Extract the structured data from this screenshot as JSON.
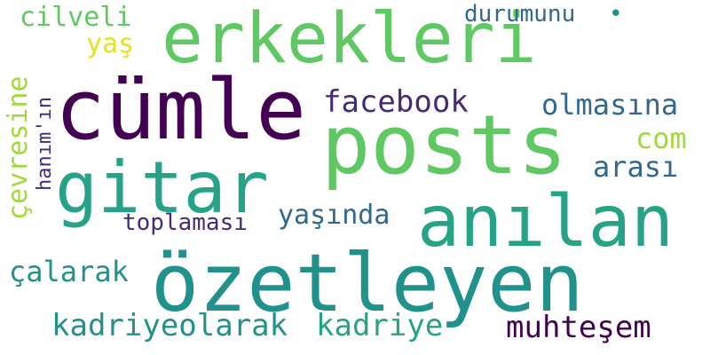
{
  "words": {
    "erkekleri": "erkekleri",
    "cumle": "cümle",
    "posts": "posts",
    "gitar": "gitar",
    "anilan": "anılan",
    "ozetleyen": "özetleyen",
    "cilveli": "cilveli",
    "yas": "yaş",
    "durumunu": "durumunu",
    "facebook": "facebook",
    "olmasina": "olmasına",
    "com": "com",
    "arasi": "arası",
    "cevresine": "çevresine",
    "hanimin": "hanım'ın",
    "toplamasi": "toplaması",
    "yasinda": "yaşında",
    "calarak": "çalarak",
    "kadriyeolarak": "kadriyeolarak",
    "kadriye": "kadriye",
    "muhtesem": "muhteşem",
    "dot": "•"
  }
}
